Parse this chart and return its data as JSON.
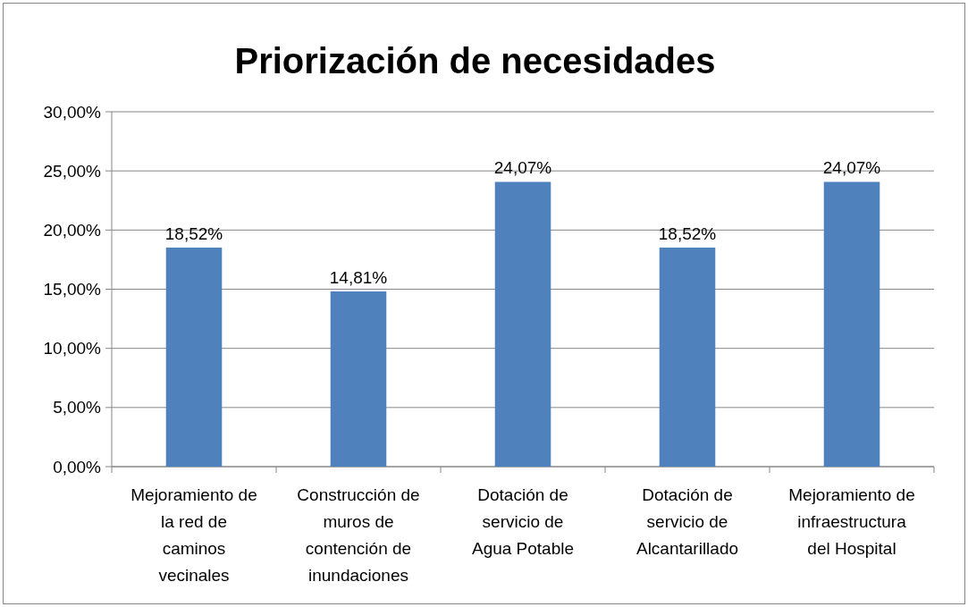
{
  "chart_data": {
    "type": "bar",
    "title": "Priorización de necesidades",
    "categories": [
      "Mejoramiento de la red de caminos vecinales",
      "Construcción de muros de contención de inundaciones",
      "Dotación de servicio de Agua Potable",
      "Dotación de servicio de Alcantarillado",
      "Mejoramiento de infraestructura del Hospital"
    ],
    "values": [
      18.52,
      14.81,
      24.07,
      18.52,
      24.07
    ],
    "value_labels": [
      "18,52%",
      "14,81%",
      "24,07%",
      "18,52%",
      "24,07%"
    ],
    "color": "#4f81bd",
    "ylim": [
      0,
      30
    ],
    "yticks": [
      {
        "value": 0,
        "label": "0,00%"
      },
      {
        "value": 5,
        "label": "5,00%"
      },
      {
        "value": 10,
        "label": "10,00%"
      },
      {
        "value": 15,
        "label": "15,00%"
      },
      {
        "value": 20,
        "label": "20,00%"
      },
      {
        "value": 25,
        "label": "25,00%"
      },
      {
        "value": 30,
        "label": "30,00%"
      }
    ],
    "grid": "y"
  }
}
